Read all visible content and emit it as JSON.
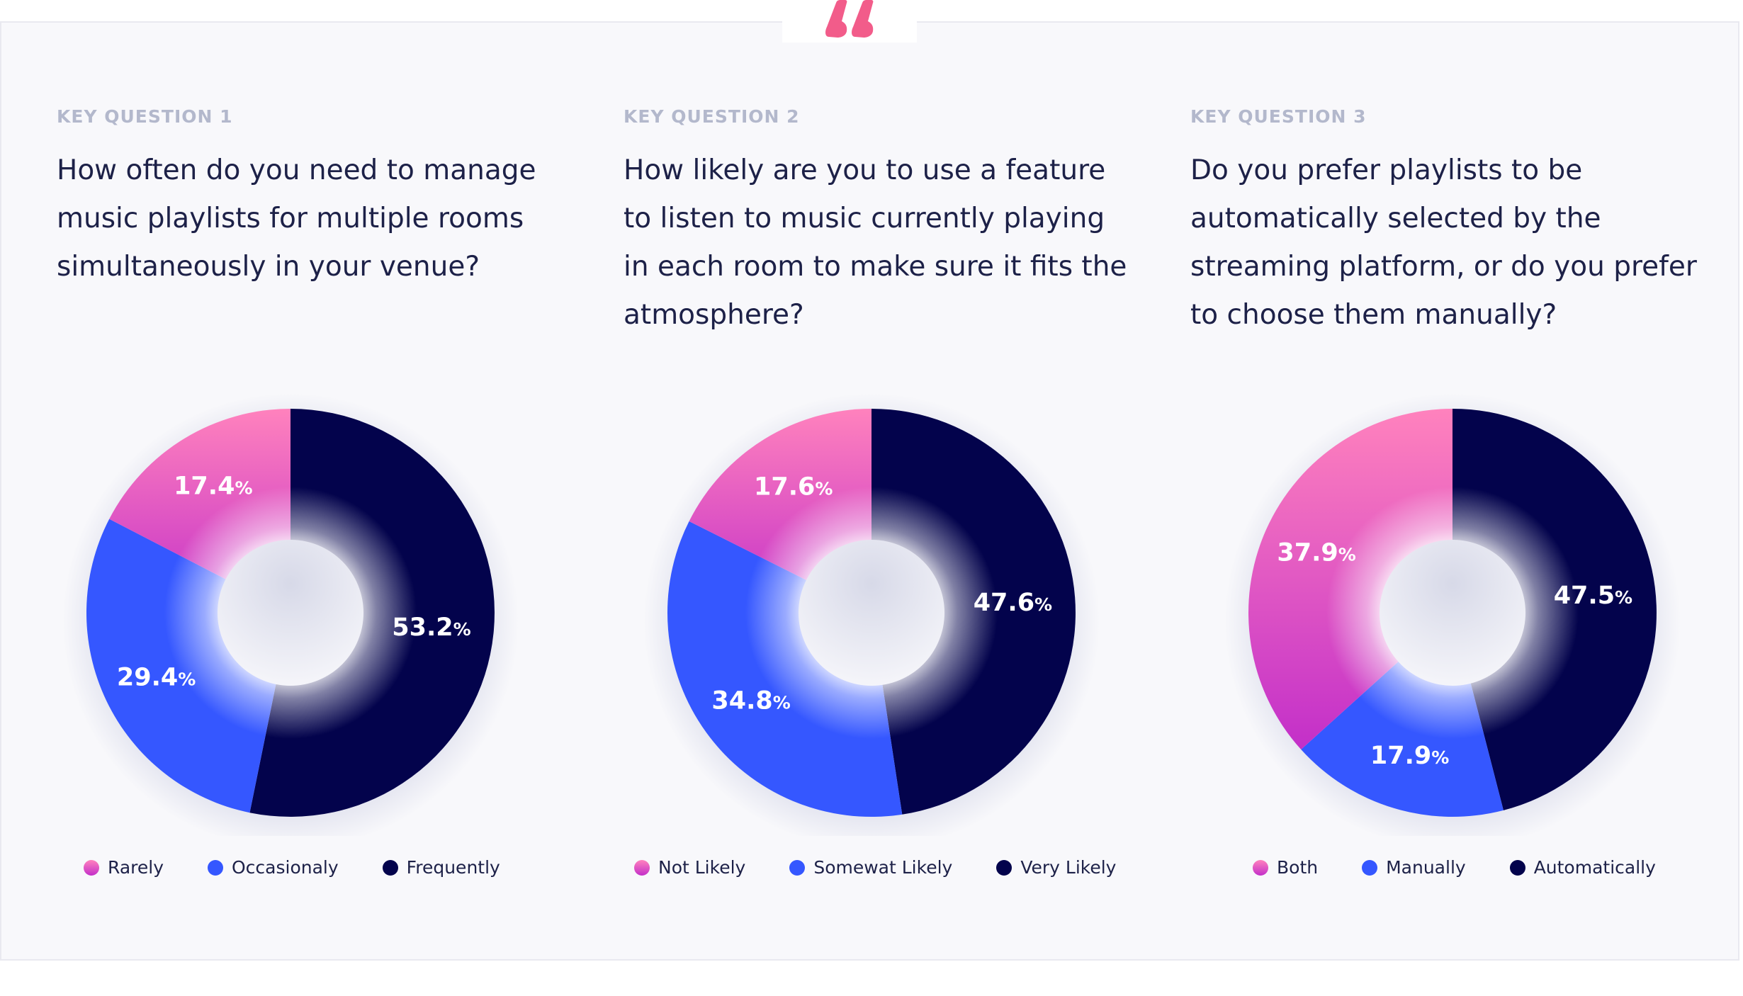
{
  "colors": {
    "pink_top": "#ff82bd",
    "pink_bottom": "#c32fc9",
    "blue": "#3557ff",
    "navy": "#03034c",
    "quote": "#f25c8a"
  },
  "quote_icon": "quote-mark-icon",
  "questions": [
    {
      "kicker": "KEY QUESTION 1",
      "text": "How often do you need to manage music playlists for multiple rooms simultaneously in your venue?"
    },
    {
      "kicker": "KEY QUESTION 2",
      "text": "How likely are you to use a feature to listen to music currently playing in each room to make sure it fits the atmosphere?"
    },
    {
      "kicker": "KEY QUESTION 3",
      "text": "Do you prefer playlists to be automatically selected by the streaming platform, or do you prefer to choose them manually?"
    }
  ],
  "chart_data": [
    {
      "type": "pie",
      "categories": [
        "Frequently",
        "Occasionaly",
        "Rarely"
      ],
      "values": [
        53.2,
        29.4,
        17.4
      ],
      "labels": [
        {
          "num": "53.2",
          "unit": "%"
        },
        {
          "num": "29.4",
          "unit": "%"
        },
        {
          "num": "17.4",
          "unit": "%"
        }
      ],
      "legend": [
        "Rarely",
        "Occasionaly",
        "Frequently"
      ],
      "legend_placement": "bottom"
    },
    {
      "type": "pie",
      "categories": [
        "Very Likely",
        "Somewat Likely",
        "Not Likely"
      ],
      "values": [
        47.6,
        34.8,
        17.6
      ],
      "labels": [
        {
          "num": "47.6",
          "unit": "%"
        },
        {
          "num": "34.8",
          "unit": "%"
        },
        {
          "num": "17.6",
          "unit": "%"
        }
      ],
      "legend": [
        "Not Likely",
        "Somewat Likely",
        "Very Likely"
      ],
      "legend_placement": "bottom"
    },
    {
      "type": "pie",
      "categories": [
        "Automatically",
        "Manually",
        "Both"
      ],
      "values": [
        47.5,
        17.9,
        37.9
      ],
      "labels": [
        {
          "num": "47.5",
          "unit": "%"
        },
        {
          "num": "17.9",
          "unit": "%"
        },
        {
          "num": "37.9",
          "unit": "%"
        }
      ],
      "legend": [
        "Both",
        "Manually",
        "Automatically"
      ],
      "legend_placement": "bottom"
    }
  ]
}
